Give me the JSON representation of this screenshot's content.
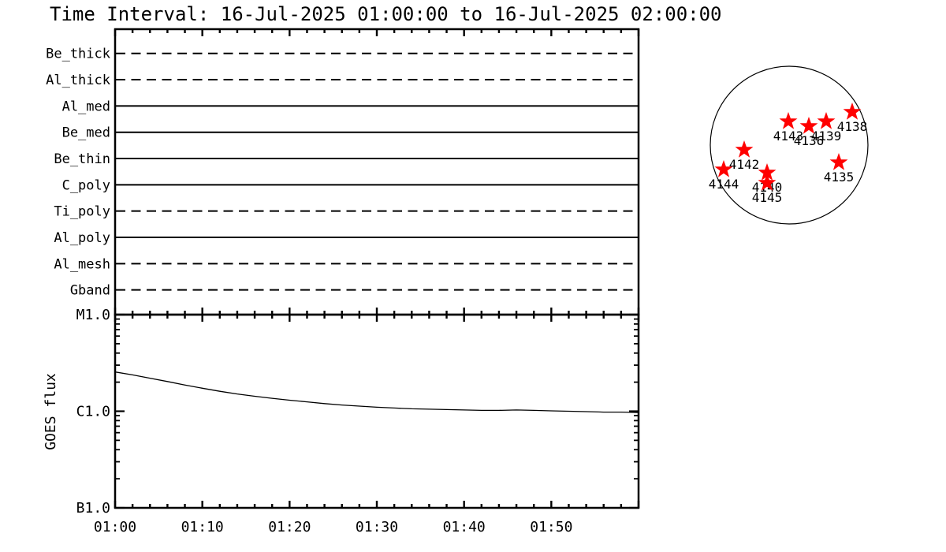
{
  "title": "Time Interval: 16-Jul-2025 01:00:00 to 16-Jul-2025 02:00:00",
  "colors": {
    "ink": "#000000",
    "background": "#ffffff",
    "star": "#ff0000"
  },
  "chart_data": [
    {
      "type": "timeline",
      "name": "xrt-filter-timeline",
      "x_range": [
        "01:00",
        "02:00"
      ],
      "x_major_tick_minutes": 10,
      "x_minor_tick_minutes": 2,
      "rows": [
        {
          "label": "Be_thick",
          "style": "dashed"
        },
        {
          "label": "Al_thick",
          "style": "dashed"
        },
        {
          "label": "Al_med",
          "style": "solid"
        },
        {
          "label": "Be_med",
          "style": "solid"
        },
        {
          "label": "Be_thin",
          "style": "solid"
        },
        {
          "label": "C_poly",
          "style": "solid"
        },
        {
          "label": "Ti_poly",
          "style": "dashed"
        },
        {
          "label": "Al_poly",
          "style": "solid"
        },
        {
          "label": "Al_mesh",
          "style": "dashed"
        },
        {
          "label": "Gband",
          "style": "dashed"
        }
      ]
    },
    {
      "type": "line",
      "name": "goes-flux",
      "ylabel": "GOES flux",
      "yscale": "log",
      "ylim": [
        1e-07,
        1e-05
      ],
      "ytick_values": [
        1e-05,
        1e-06,
        1e-07
      ],
      "ytick_labels": [
        "M1.0",
        "C1.0",
        "B1.0"
      ],
      "xtick_labels": [
        "01:00",
        "01:10",
        "01:20",
        "01:30",
        "01:40",
        "01:50"
      ],
      "x_major_tick_minutes": 10,
      "x_minor_tick_minutes": 2,
      "x_minutes": [
        0,
        2,
        4,
        6,
        8,
        10,
        12,
        14,
        16,
        18,
        20,
        22,
        24,
        26,
        28,
        30,
        32,
        34,
        36,
        38,
        40,
        42,
        44,
        46,
        48,
        50,
        52,
        54,
        56,
        58,
        60
      ],
      "flux": [
        2.55e-06,
        2.38e-06,
        2.2e-06,
        2.03e-06,
        1.87e-06,
        1.73e-06,
        1.61e-06,
        1.51e-06,
        1.43e-06,
        1.36e-06,
        1.3e-06,
        1.25e-06,
        1.2e-06,
        1.16e-06,
        1.13e-06,
        1.1e-06,
        1.08e-06,
        1.06e-06,
        1.05e-06,
        1.04e-06,
        1.03e-06,
        1.02e-06,
        1.02e-06,
        1.03e-06,
        1.02e-06,
        1.01e-06,
        1e-06,
        9.9e-07,
        9.8e-07,
        9.8e-07,
        9.7e-07
      ]
    },
    {
      "type": "scatter",
      "name": "solar-disk-active-regions",
      "marker": "star",
      "points": [
        {
          "label": "4143",
          "x": -0.01,
          "y": -0.3
        },
        {
          "label": "4136",
          "x": 0.25,
          "y": -0.24
        },
        {
          "label": "4139",
          "x": 0.47,
          "y": -0.3
        },
        {
          "label": "4138",
          "x": 0.8,
          "y": -0.42
        },
        {
          "label": "4142",
          "x": -0.57,
          "y": 0.06
        },
        {
          "label": "4144",
          "x": -0.83,
          "y": 0.31
        },
        {
          "label": "4140",
          "x": -0.28,
          "y": 0.35
        },
        {
          "label": "4145",
          "x": -0.28,
          "y": 0.48
        },
        {
          "label": "4135",
          "x": 0.63,
          "y": 0.22
        }
      ]
    }
  ]
}
